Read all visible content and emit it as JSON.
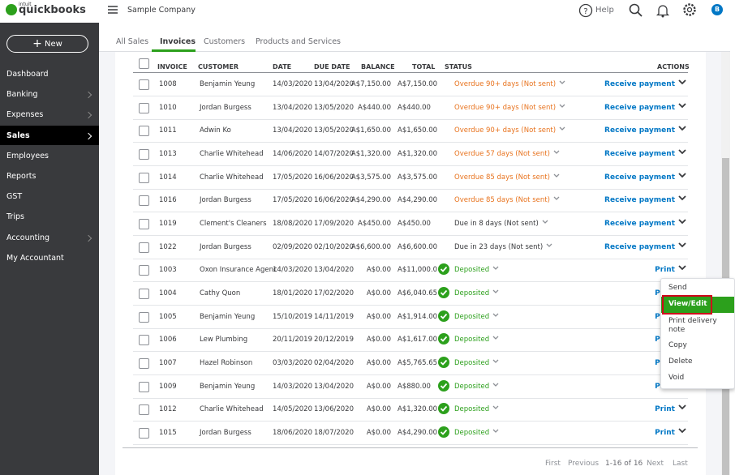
{
  "header": {
    "logo_small": "intuit",
    "logo": "quickbooks",
    "company": "Sample Company",
    "help": "Help",
    "avatar": "B"
  },
  "sidebar": {
    "new_button": "New",
    "items": [
      "Dashboard",
      "Banking",
      "Expenses",
      "Sales",
      "Employees",
      "Reports",
      "GST",
      "Trips",
      "Accounting",
      "My Accountant"
    ]
  },
  "tabs": [
    "All Sales",
    "Invoices",
    "Customers",
    "Products and Services"
  ],
  "table": {
    "columns": [
      "INVOICE",
      "CUSTOMER",
      "DATE",
      "DUE DATE",
      "BALANCE",
      "TOTAL",
      "STATUS",
      "ACTIONS"
    ],
    "rows": [
      {
        "invoice": "1008",
        "customer": "Benjamin Yeung",
        "date": "14/03/2020",
        "due_date": "13/04/2020",
        "balance": "A$7,150.00",
        "total": "A$7,150.00",
        "status": "Overdue 90+ days (Not sent)",
        "status_color": "#e8731e",
        "action": "Receive payment"
      },
      {
        "invoice": "1010",
        "customer": "Jordan Burgess",
        "date": "13/04/2020",
        "due_date": "13/05/2020",
        "balance": "A$440.00",
        "total": "A$440.00",
        "status": "Overdue 90+ days (Not sent)",
        "status_color": "#e8731e",
        "action": "Receive payment"
      },
      {
        "invoice": "1011",
        "customer": "Adwin Ko",
        "date": "13/04/2020",
        "due_date": "13/05/2020",
        "balance": "A$1,650.00",
        "total": "A$1,650.00",
        "status": "Overdue 90+ days (Not sent)",
        "status_color": "#e8731e",
        "action": "Receive payment"
      },
      {
        "invoice": "1013",
        "customer": "Charlie Whitehead",
        "date": "14/06/2020",
        "due_date": "14/07/2020",
        "balance": "A$1,320.00",
        "total": "A$1,320.00",
        "status": "Overdue 57 days (Not sent)",
        "status_color": "#e8731e",
        "action": "Receive payment"
      },
      {
        "invoice": "1014",
        "customer": "Charlie Whitehead",
        "date": "17/05/2020",
        "due_date": "16/06/2020",
        "balance": "A$3,575.00",
        "total": "A$3,575.00",
        "status": "Overdue 85 days (Not sent)",
        "status_color": "#e8731e",
        "action": "Receive payment"
      },
      {
        "invoice": "1016",
        "customer": "Jordan Burgess",
        "date": "17/05/2020",
        "due_date": "16/06/2020",
        "balance": "A$4,290.00",
        "total": "A$4,290.00",
        "status": "Overdue 85 days (Not sent)",
        "status_color": "#e8731e",
        "action": "Receive payment"
      },
      {
        "invoice": "1019",
        "customer": "Clement's Cleaners",
        "date": "18/08/2020",
        "due_date": "17/09/2020",
        "balance": "A$450.00",
        "total": "A$450.00",
        "status": "Due in 8 days (Not sent)",
        "status_color": "#393a3d",
        "action": "Receive payment"
      },
      {
        "invoice": "1022",
        "customer": "Jordan Burgess",
        "date": "02/09/2020",
        "due_date": "02/10/2020",
        "balance": "A$6,600.00",
        "total": "A$6,600.00",
        "status": "Due in 23 days (Not sent)",
        "status_color": "#393a3d",
        "action": "Receive payment"
      },
      {
        "invoice": "1003",
        "customer": "Oxon Insurance Agenc",
        "date": "14/03/2020",
        "due_date": "13/04/2020",
        "balance": "A$0.00",
        "total": "A$11,000.0",
        "status": "Deposited",
        "status_color": "#2ca01c",
        "action": "Print"
      },
      {
        "invoice": "1004",
        "customer": "Cathy Quon",
        "date": "18/01/2020",
        "due_date": "17/02/2020",
        "balance": "A$0.00",
        "total": "A$6,040.65",
        "status": "Deposited",
        "status_color": "#2ca01c",
        "action": "Print"
      },
      {
        "invoice": "1005",
        "customer": "Benjamin Yeung",
        "date": "15/10/2019",
        "due_date": "14/11/2019",
        "balance": "A$0.00",
        "total": "A$1,914.00",
        "status": "Deposited",
        "status_color": "#2ca01c",
        "action": "Print"
      },
      {
        "invoice": "1006",
        "customer": "Lew Plumbing",
        "date": "20/11/2019",
        "due_date": "20/12/2019",
        "balance": "A$0.00",
        "total": "A$1,617.00",
        "status": "Deposited",
        "status_color": "#2ca01c",
        "action": "Print"
      },
      {
        "invoice": "1007",
        "customer": "Hazel Robinson",
        "date": "03/03/2020",
        "due_date": "02/04/2020",
        "balance": "A$0.00",
        "total": "A$5,765.65",
        "status": "Deposited",
        "status_color": "#2ca01c",
        "action": "Print"
      },
      {
        "invoice": "1009",
        "customer": "Benjamin Yeung",
        "date": "14/03/2020",
        "due_date": "13/04/2020",
        "balance": "A$0.00",
        "total": "A$880.00",
        "status": "Deposited",
        "status_color": "#2ca01c",
        "action": "Print"
      },
      {
        "invoice": "1012",
        "customer": "Charlie Whitehead",
        "date": "14/05/2020",
        "due_date": "13/06/2020",
        "balance": "A$0.00",
        "total": "A$1,320.00",
        "status": "Deposited",
        "status_color": "#2ca01c",
        "action": "Print"
      },
      {
        "invoice": "1015",
        "customer": "Jordan Burgess",
        "date": "18/06/2020",
        "due_date": "18/07/2020",
        "balance": "A$0.00",
        "total": "A$4,290.00",
        "status": "Deposited",
        "status_color": "#2ca01c",
        "action": "Print"
      }
    ]
  },
  "menu": [
    "Send",
    "View/Edit",
    "Print delivery note",
    "Copy",
    "Delete",
    "Void"
  ],
  "pagination": {
    "first": "First",
    "previous": "Previous",
    "range": "1-16 of 16",
    "next": "Next",
    "last": "Last"
  }
}
